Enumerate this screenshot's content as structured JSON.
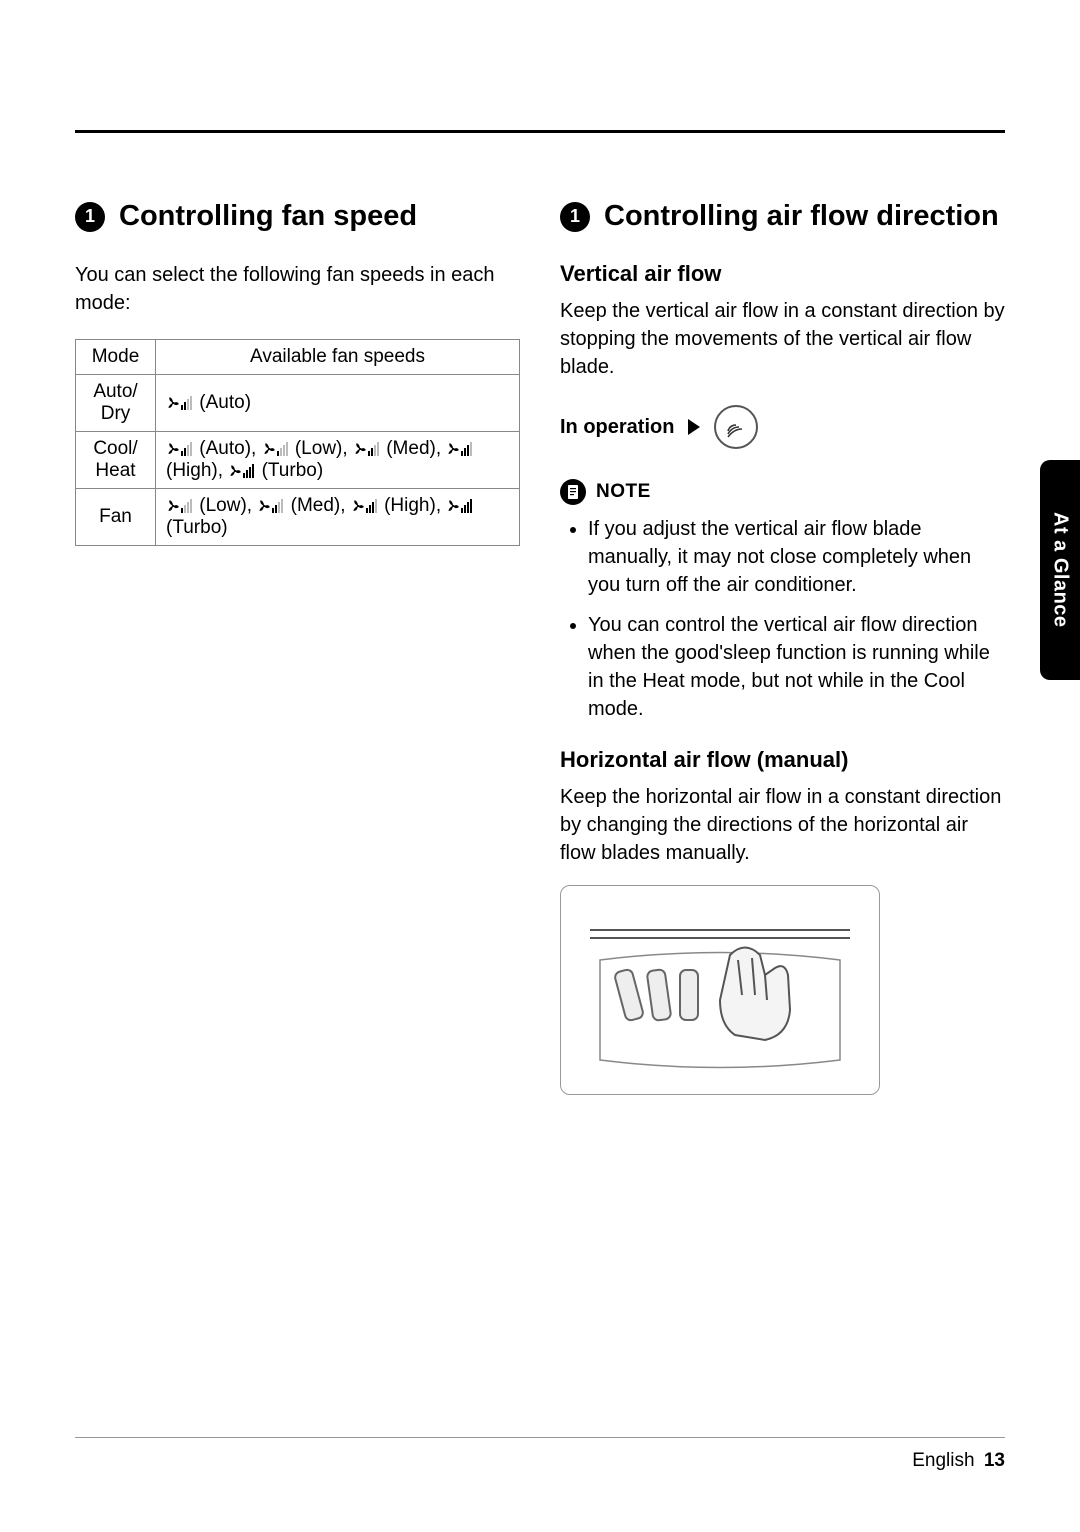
{
  "left": {
    "badge": "1",
    "title": "Controlling fan speed",
    "intro": "You can select the following fan speeds in each mode:",
    "table": {
      "headers": {
        "mode": "Mode",
        "speeds": "Available fan speeds"
      },
      "rows": [
        {
          "mode_line1": "Auto/",
          "mode_line2": "Dry",
          "speeds": [
            {
              "bars": [
                1,
                1,
                0,
                0
              ],
              "label": "(Auto)"
            }
          ]
        },
        {
          "mode_line1": "Cool/",
          "mode_line2": "Heat",
          "speeds": [
            {
              "bars": [
                1,
                1,
                0,
                0
              ],
              "label": "(Auto),"
            },
            {
              "bars": [
                1,
                0,
                0,
                0
              ],
              "label": "(Low),"
            },
            {
              "bars": [
                1,
                1,
                0,
                0
              ],
              "label": "(Med),"
            },
            {
              "bars": [
                1,
                1,
                1,
                0
              ],
              "label": "(High),"
            },
            {
              "bars": [
                1,
                1,
                1,
                1
              ],
              "label": "(Turbo)"
            }
          ]
        },
        {
          "mode_line1": "Fan",
          "mode_line2": "",
          "speeds": [
            {
              "bars": [
                1,
                0,
                0,
                0
              ],
              "label": "(Low),"
            },
            {
              "bars": [
                1,
                1,
                0,
                0
              ],
              "label": "(Med),"
            },
            {
              "bars": [
                1,
                1,
                1,
                0
              ],
              "label": "(High),"
            },
            {
              "bars": [
                1,
                1,
                1,
                1
              ],
              "label": "(Turbo)"
            }
          ]
        }
      ]
    }
  },
  "right": {
    "badge": "1",
    "title": "Controlling air flow direction",
    "vertical": {
      "heading": "Vertical air flow",
      "body": "Keep the vertical air flow in a constant direction by stopping the movements of the vertical air flow blade.",
      "in_operation": "In operation"
    },
    "note_label": "NOTE",
    "notes": [
      "If you adjust the vertical air flow blade manually, it may not close completely when you turn off the air conditioner.",
      "You can control the vertical air flow direction when the good'sleep function is running while in the Heat mode, but not while in the Cool mode."
    ],
    "horizontal": {
      "heading": "Horizontal air flow (manual)",
      "body": "Keep the horizontal air flow in a constant direction by changing the directions of the horizontal air flow blades manually."
    }
  },
  "side_tab": "At a Glance",
  "footer": {
    "lang": "English",
    "page": "13"
  }
}
